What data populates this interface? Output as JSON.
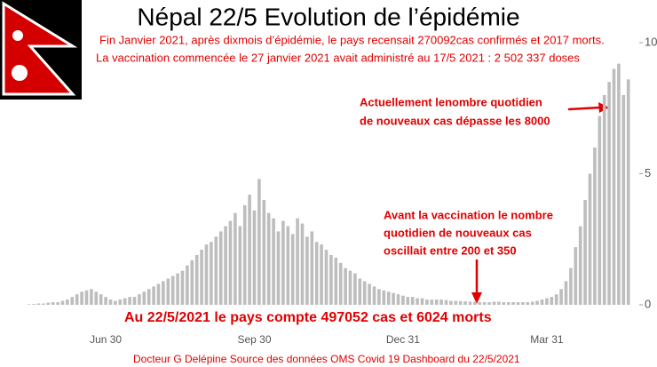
{
  "chart_data": {
    "type": "bar",
    "title": "Népal 22/5 Evolution de l’épidémie",
    "subtitle": [
      "Fin Janvier 2021, après dixmois d’épidémie, le pays recensait 270092cas confirmés et 2017 morts.",
      "La vaccination commencée le 27 janvier 2021 avait administré au 17/5 2021 : 2 502 337 doses"
    ],
    "annotations": [
      [
        "Actuellement lenombre quotidien",
        "de nouveaux cas dépasse les 8000"
      ],
      [
        "Avant la vaccination le nombre",
        "quotidien de nouveaux cas",
        "oscillait entre 200 et 350"
      ]
    ],
    "summary": "Au 22/5/2021 le pays compte 497052 cas et 6024 morts",
    "source": "Docteur G Delépine Source des données OMS Covid 19 Dashboard du  22/5/2021",
    "color": "#bdbdbd",
    "categories": [
      null,
      null,
      null,
      null,
      null,
      null,
      null,
      null,
      null,
      null,
      null,
      null,
      null,
      null,
      null,
      null,
      "Jun 30",
      null,
      null,
      null,
      null,
      null,
      null,
      null,
      null,
      null,
      null,
      null,
      null,
      null,
      null,
      null,
      null,
      null,
      null,
      null,
      null,
      null,
      null,
      null,
      null,
      null,
      null,
      null,
      null,
      null,
      null,
      "Sep 30",
      null,
      null,
      null,
      null,
      null,
      null,
      null,
      null,
      null,
      null,
      null,
      null,
      null,
      null,
      null,
      null,
      null,
      null,
      null,
      null,
      null,
      null,
      null,
      null,
      null,
      null,
      null,
      null,
      null,
      null,
      "Dec 31",
      null,
      null,
      null,
      null,
      null,
      null,
      null,
      null,
      null,
      null,
      null,
      null,
      null,
      null,
      null,
      null,
      null,
      null,
      null,
      null,
      null,
      null,
      null,
      null,
      null,
      null,
      null,
      null,
      null,
      "Mar 31",
      null,
      null,
      null,
      null,
      null,
      null,
      null,
      null,
      null,
      null,
      null,
      null,
      null,
      null,
      null,
      null,
      null
    ],
    "values": [
      0.02,
      0.03,
      0.05,
      0.05,
      0.08,
      0.1,
      0.1,
      0.15,
      0.2,
      0.3,
      0.4,
      0.5,
      0.55,
      0.6,
      0.5,
      0.4,
      0.3,
      0.2,
      0.15,
      0.2,
      0.25,
      0.3,
      0.3,
      0.4,
      0.5,
      0.6,
      0.7,
      0.8,
      0.9,
      1.0,
      1.1,
      1.2,
      1.3,
      1.5,
      1.7,
      1.9,
      2.1,
      2.3,
      2.4,
      2.6,
      2.8,
      3.0,
      3.2,
      3.5,
      3.0,
      3.8,
      4.2,
      3.6,
      4.8,
      4.0,
      3.5,
      3.3,
      2.8,
      3.2,
      3.0,
      2.7,
      3.3,
      3.1,
      2.6,
      2.8,
      2.4,
      2.3,
      2.1,
      1.9,
      1.8,
      1.6,
      1.4,
      1.3,
      1.2,
      1.0,
      0.9,
      0.8,
      0.7,
      0.6,
      0.55,
      0.5,
      0.45,
      0.4,
      0.35,
      0.3,
      0.3,
      0.25,
      0.25,
      0.2,
      0.2,
      0.2,
      0.2,
      0.18,
      0.15,
      0.15,
      0.14,
      0.13,
      0.12,
      0.12,
      0.1,
      0.1,
      0.1,
      0.12,
      0.12,
      0.1,
      0.1,
      0.1,
      0.1,
      0.1,
      0.1,
      0.12,
      0.15,
      0.2,
      0.25,
      0.3,
      0.4,
      0.6,
      0.9,
      1.4,
      2.2,
      3.0,
      4.0,
      5.0,
      6.0,
      7.2,
      8.0,
      8.5,
      9.0,
      9.2,
      8.0,
      8.6
    ],
    "ylim": [
      0,
      10
    ],
    "yticks": [
      0,
      5,
      10
    ]
  }
}
